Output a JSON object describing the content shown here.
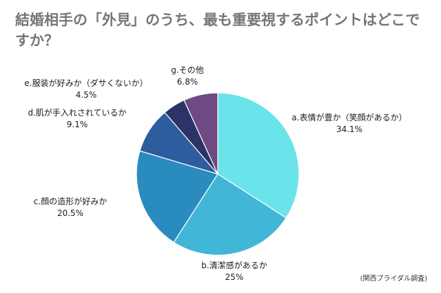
{
  "chart_data": {
    "type": "pie",
    "title": "結婚相手の「外見」のうち、最も重要視するポイントはどこですか？",
    "slices": [
      {
        "label": "a.表情が豊か（笑顔があるか）",
        "value": 34.1,
        "value_label": "34.1%",
        "color": "#6BE3EA"
      },
      {
        "label": "b.清潔感があるか",
        "value": 25,
        "value_label": "25%",
        "color": "#41B6D7"
      },
      {
        "label": "c.顔の造形が好みか",
        "value": 20.5,
        "value_label": "20.5%",
        "color": "#2A8BBF"
      },
      {
        "label": "d.肌が手入れされているか",
        "value": 9.1,
        "value_label": "9.1%",
        "color": "#2D5D9E"
      },
      {
        "label": "e.服装が好みか（ダサくないか）",
        "value": 4.5,
        "value_label": "4.5%",
        "color": "#2C3366"
      },
      {
        "label": "g.その他",
        "value": 6.8,
        "value_label": "6.8%",
        "color": "#6E4A82"
      }
    ],
    "start": "12 o'clock",
    "direction": "clockwise",
    "legend": "none",
    "source": "(関西ブライダル調査)"
  }
}
